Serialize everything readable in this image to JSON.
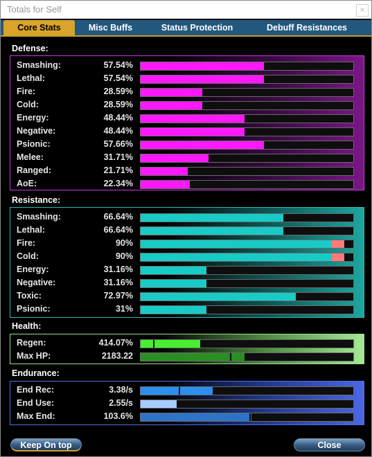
{
  "window": {
    "title": "Totals for Self",
    "close_glyph": "×"
  },
  "tabs": [
    {
      "label": "Core Stats",
      "active": true
    },
    {
      "label": "Misc Buffs",
      "active": false
    },
    {
      "label": "Status Protection",
      "active": false
    },
    {
      "label": "Debuff Resistances",
      "active": false
    }
  ],
  "defense": {
    "title": "Defense:",
    "rows": [
      {
        "label": "Smashing:",
        "value": "57.54%",
        "level": 0.58
      },
      {
        "label": "Lethal:",
        "value": "57.54%",
        "level": 0.58
      },
      {
        "label": "Fire:",
        "value": "28.59%",
        "level": 0.29
      },
      {
        "label": "Cold:",
        "value": "28.59%",
        "level": 0.29
      },
      {
        "label": "Energy:",
        "value": "48.44%",
        "level": 0.49
      },
      {
        "label": "Negative:",
        "value": "48.44%",
        "level": 0.49
      },
      {
        "label": "Psionic:",
        "value": "57.66%",
        "level": 0.58
      },
      {
        "label": "Melee:",
        "value": "31.71%",
        "level": 0.32
      },
      {
        "label": "Ranged:",
        "value": "21.71%",
        "level": 0.22
      },
      {
        "label": "AoE:",
        "value": "22.34%",
        "level": 0.23
      }
    ]
  },
  "resistance": {
    "title": "Resistance:",
    "rows": [
      {
        "label": "Smashing:",
        "value": "66.64%",
        "level": 0.67
      },
      {
        "label": "Lethal:",
        "value": "66.64%",
        "level": 0.67
      },
      {
        "label": "Fire:",
        "value": "90%",
        "level": 0.9,
        "capped": true
      },
      {
        "label": "Cold:",
        "value": "90%",
        "level": 0.9,
        "capped": true
      },
      {
        "label": "Energy:",
        "value": "31.16%",
        "level": 0.31
      },
      {
        "label": "Negative:",
        "value": "31.16%",
        "level": 0.31
      },
      {
        "label": "Toxic:",
        "value": "72.97%",
        "level": 0.73
      },
      {
        "label": "Psionic:",
        "value": "31%",
        "level": 0.31
      }
    ]
  },
  "health": {
    "title": "Health:",
    "rows": [
      {
        "label": "Regen:",
        "value": "414.07%",
        "level": 0.28,
        "marker": 0.06,
        "kind": "regen"
      },
      {
        "label": "Max HP:",
        "value": "2183.22",
        "level": 0.49,
        "marker": 0.42,
        "kind": "maxhp"
      }
    ]
  },
  "endurance": {
    "title": "Endurance:",
    "rows": [
      {
        "label": "End Rec:",
        "value": "3.38/s",
        "level": 0.34,
        "marker": 0.18,
        "kind": "endrec"
      },
      {
        "label": "End Use:",
        "value": "2.55/s",
        "level": 0.17,
        "kind": "enduse"
      },
      {
        "label": "Max End:",
        "value": "103.6%",
        "level": 0.52,
        "marker": 0.51,
        "kind": "maxend"
      }
    ]
  },
  "buttons": {
    "keep_on_top": "Keep On top",
    "close": "Close"
  },
  "colors": {
    "defense_bar": "#ff18ff",
    "resistance_bar": "#19cbc6",
    "resistance_cap": "#ff7b7b",
    "accent_tab": "#d8a42a"
  }
}
